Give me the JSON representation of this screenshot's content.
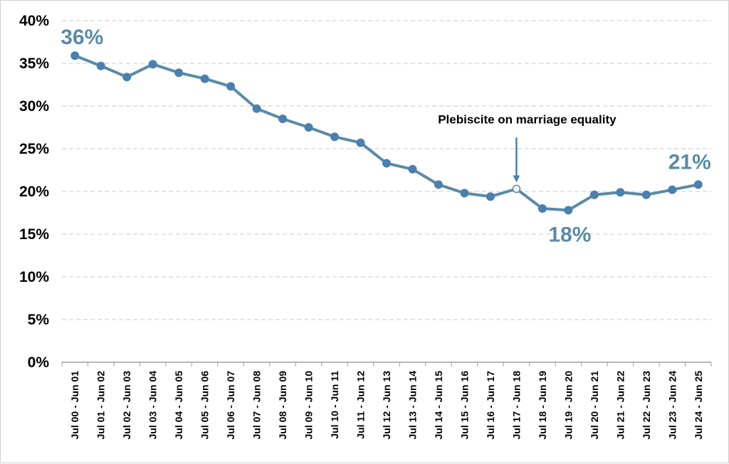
{
  "chart_data": {
    "type": "line",
    "title": "",
    "xlabel": "",
    "ylabel": "",
    "ylim": [
      0,
      40
    ],
    "y_ticks": [
      "0%",
      "5%",
      "10%",
      "15%",
      "20%",
      "25%",
      "30%",
      "35%",
      "40%"
    ],
    "grid": "horizontal-dashed",
    "categories": [
      "Jul 00 - Jun 01",
      "Jul 01 - Jun 02",
      "Jul 02 - Jun 03",
      "Jul 03 - Jun 04",
      "Jul 04 - Jun 05",
      "Jul 05 - Jun 06",
      "Jul 06 - Jun 07",
      "Jul 07 - Jun 08",
      "Jul 08 - Jun 09",
      "Jul 09 - Jun 10",
      "Jul 10 - Jun 11",
      "Jul 11 - Jun 12",
      "Jul 12 - Jun 13",
      "Jul 13 - Jun 14",
      "Jul 14 - Jun 15",
      "Jul 15 - Jun 16",
      "Jul 16 - Jun 17",
      "Jul 17 - Jun 18",
      "Jul 18 - Jun 19",
      "Jul 19 - Jun 20",
      "Jul 20 - Jun 21",
      "Jul 21 - Jun 22",
      "Jul 22 - Jun 23",
      "Jul 23 - Jun 24",
      "Jul 24 - Jun 25"
    ],
    "series": [
      {
        "values": [
          35.9,
          34.7,
          33.4,
          34.9,
          33.9,
          33.2,
          32.3,
          29.7,
          28.5,
          27.5,
          26.4,
          25.7,
          23.3,
          22.6,
          20.8,
          19.8,
          19.4,
          20.3,
          18.0,
          17.8,
          19.6,
          19.9,
          19.6,
          20.2,
          20.8
        ],
        "color": "#5a8ba8",
        "marker_color": "#4a7fb0",
        "hollow_marker_index": 17
      }
    ],
    "data_labels": [
      {
        "index": 0,
        "text": "36%",
        "color": "#5a8ba8"
      },
      {
        "index": 19,
        "text": "18%",
        "color": "#5a8ba8"
      },
      {
        "index": 24,
        "text": "21%",
        "color": "#5a8ba8"
      }
    ],
    "annotations": [
      {
        "index": 17,
        "text": "Plebiscite on marriage equality",
        "arrow_color": "#4a7fb0"
      }
    ]
  }
}
